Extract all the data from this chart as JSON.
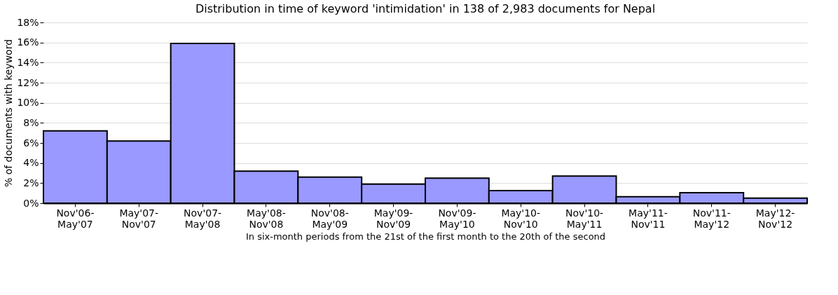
{
  "chart_data": {
    "type": "bar",
    "title": "Distribution in time of keyword 'intimidation' in 138 of 2,983 documents for Nepal",
    "xlabel": "In six-month periods from the 21st of the first month to the 20th of the second",
    "ylabel": "% of documents with keyword",
    "categories": [
      "Nov'06- May'07",
      "May'07- Nov'07",
      "Nov'07- May'08",
      "May'08- Nov'08",
      "Nov'08- May'09",
      "May'09- Nov'09",
      "Nov'09- May'10",
      "May'10- Nov'10",
      "Nov'10- May'11",
      "May'11- Nov'11",
      "Nov'11- May'12",
      "May'12- Nov'12"
    ],
    "values": [
      7.2,
      6.2,
      15.9,
      3.2,
      2.6,
      1.9,
      2.5,
      1.25,
      2.7,
      0.65,
      1.05,
      0.5
    ],
    "color": "#9999ff",
    "ylim": [
      0,
      18
    ],
    "yticks": [
      {
        "value": 0,
        "label": "0%"
      },
      {
        "value": 2,
        "label": "2%"
      },
      {
        "value": 4,
        "label": "4%"
      },
      {
        "value": 6,
        "label": "6%"
      },
      {
        "value": 8,
        "label": "8%"
      },
      {
        "value": 10,
        "label": "10%"
      },
      {
        "value": 12,
        "label": "12%"
      },
      {
        "value": 14,
        "label": "14%"
      },
      {
        "value": 16,
        "label": "16%"
      },
      {
        "value": 18,
        "label": "18%"
      }
    ],
    "grid": "y"
  }
}
